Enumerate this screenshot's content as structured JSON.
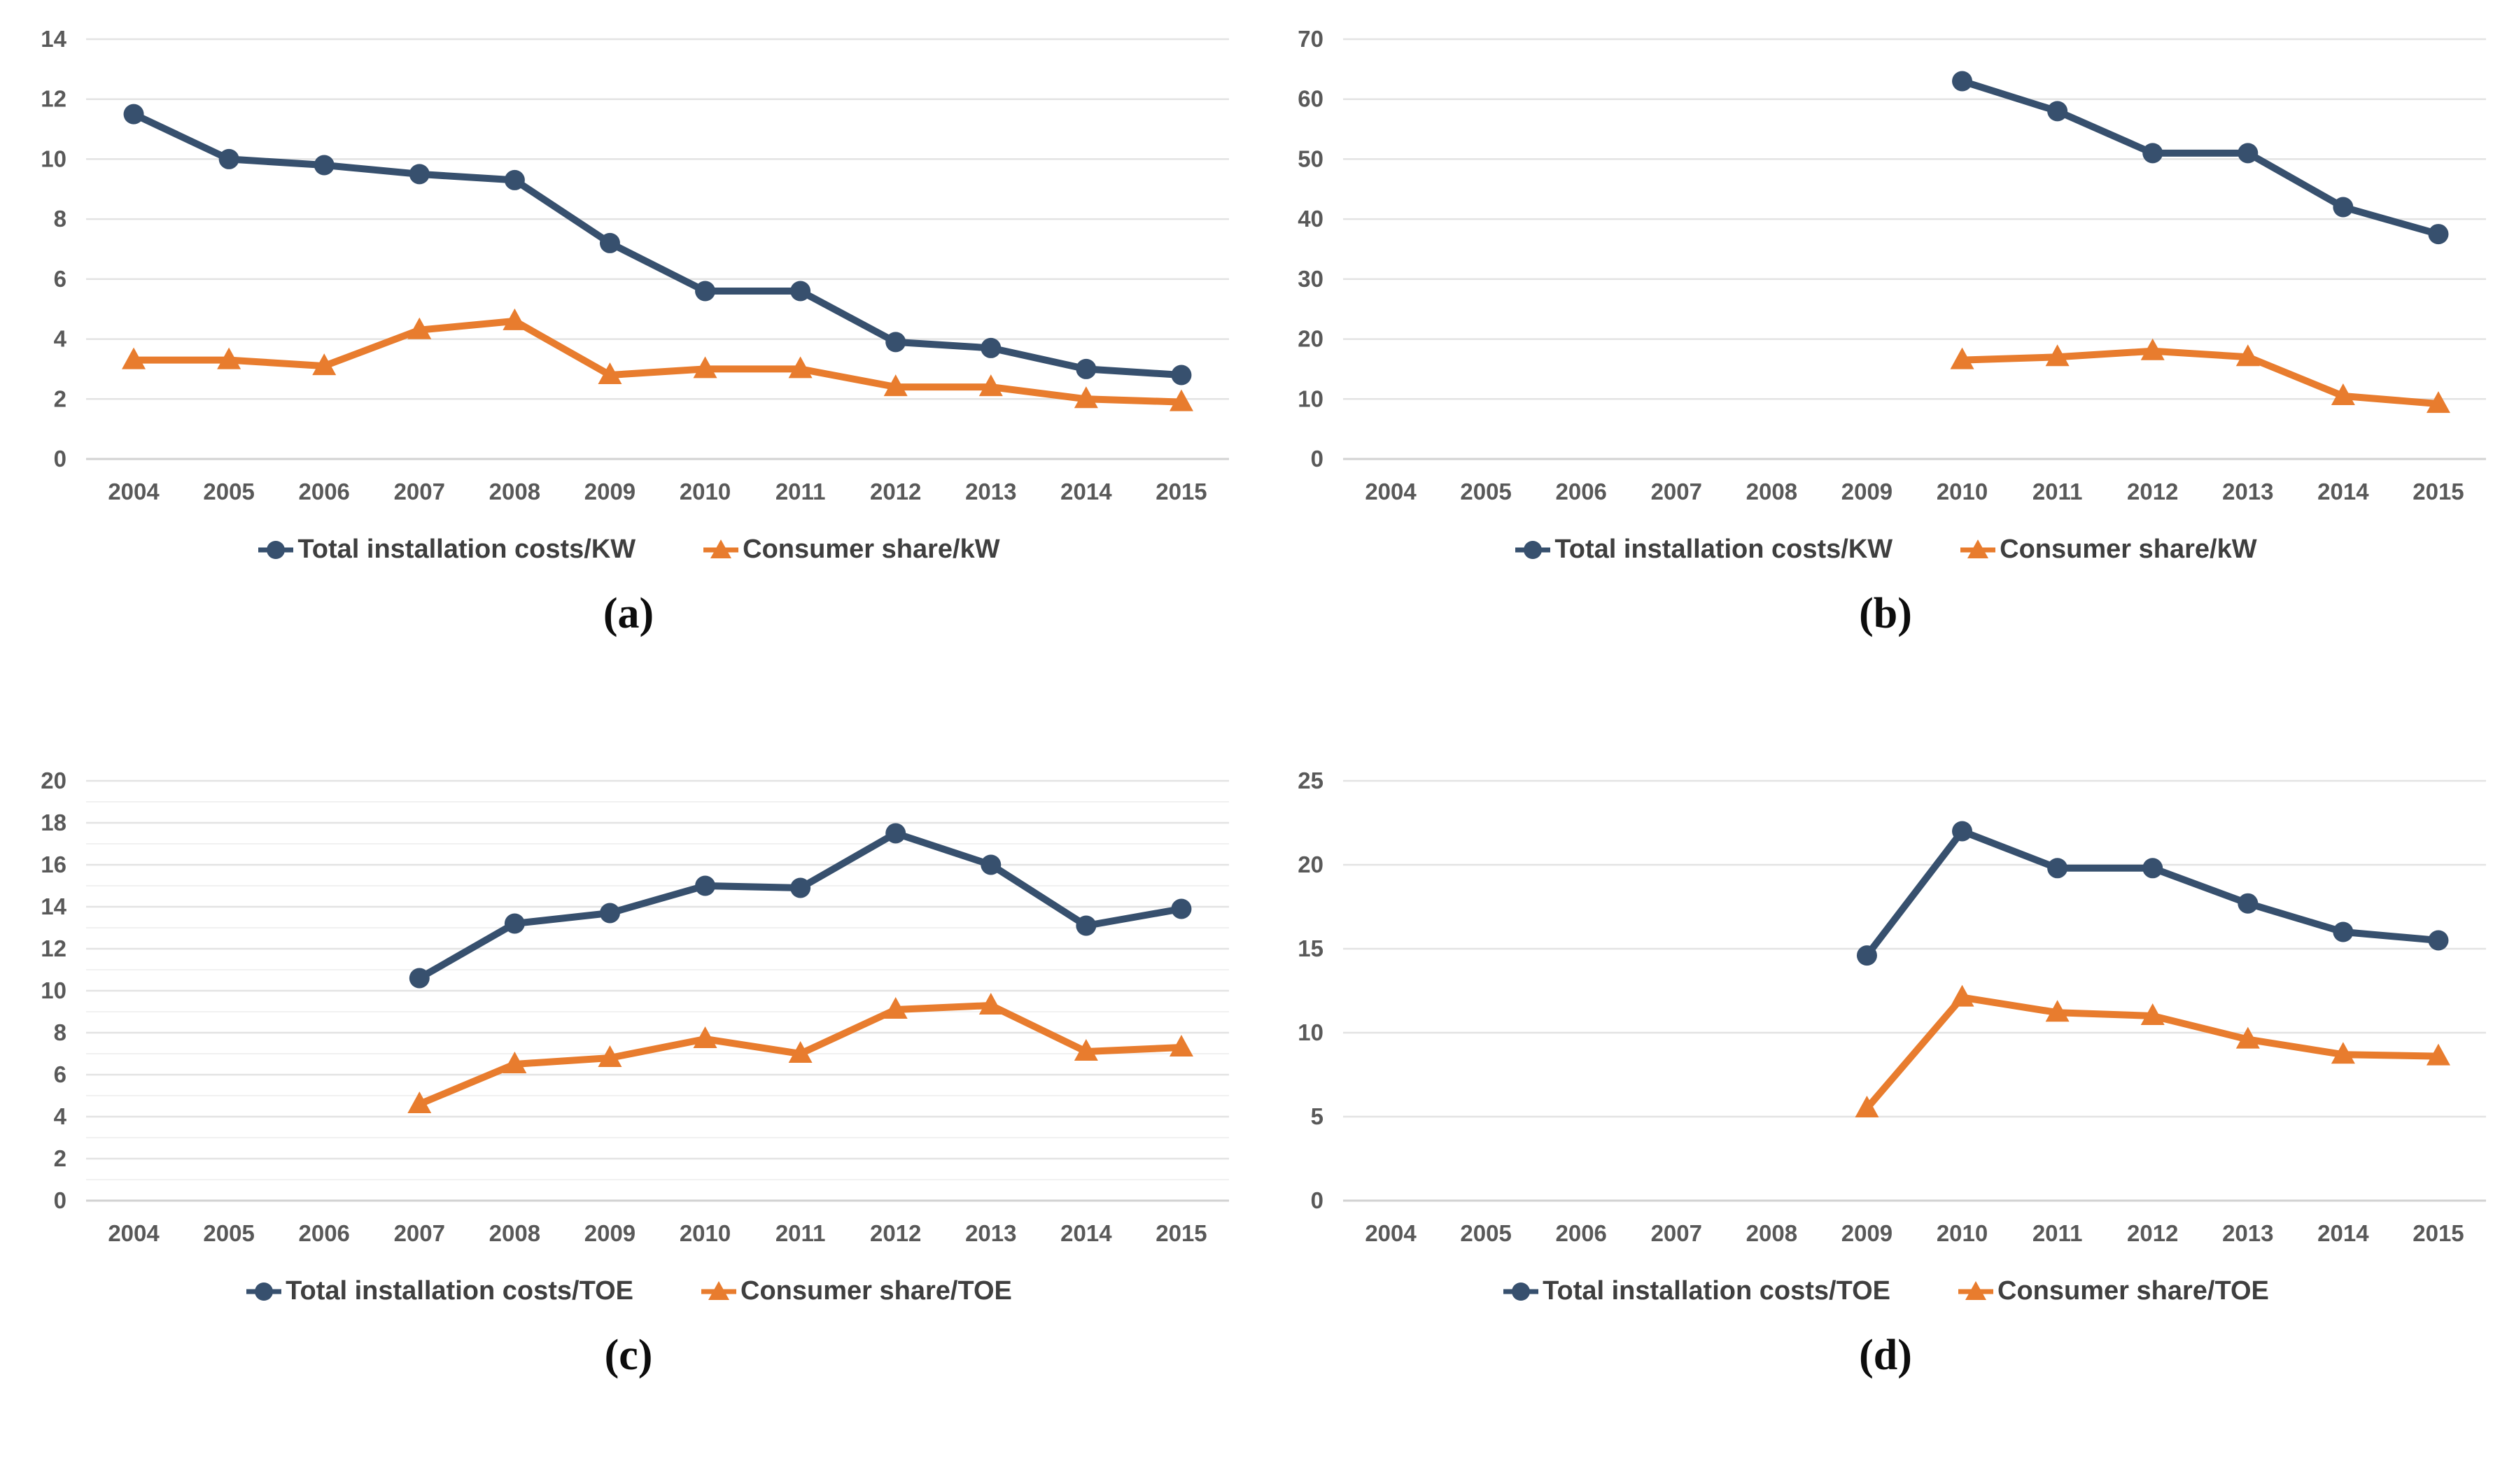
{
  "figure": {
    "colors": {
      "series_costs": "#37506e",
      "series_share": "#e87c2e",
      "gridline": "#e3e3e3",
      "tick_label": "#595959",
      "legend_label": "#3f3f3f"
    }
  },
  "chart_data": [
    {
      "type": "line",
      "panel": "a",
      "caption": "(a)",
      "categories": [
        "2004",
        "2005",
        "2006",
        "2007",
        "2008",
        "2009",
        "2010",
        "2011",
        "2012",
        "2013",
        "2014",
        "2015"
      ],
      "series": [
        {
          "name": "Total installation costs/KW",
          "marker": "circle",
          "color": "#37506e",
          "values": [
            11.5,
            10,
            9.8,
            9.5,
            9.3,
            7.2,
            5.6,
            5.6,
            3.9,
            3.7,
            3,
            2.8
          ]
        },
        {
          "name": "Consumer share/kW",
          "marker": "triangle",
          "color": "#e87c2e",
          "values": [
            3.3,
            3.3,
            3.1,
            4.3,
            4.6,
            2.8,
            3,
            3,
            2.4,
            2.4,
            2,
            1.9
          ]
        }
      ],
      "ylim": [
        0,
        14
      ],
      "ystep": 2,
      "yminor": 0,
      "grid": true,
      "legend_position": "bottom"
    },
    {
      "type": "line",
      "panel": "b",
      "caption": "(b)",
      "categories": [
        "2004",
        "2005",
        "2006",
        "2007",
        "2008",
        "2009",
        "2010",
        "2011",
        "2012",
        "2013",
        "2014",
        "2015"
      ],
      "series": [
        {
          "name": "Total installation costs/KW",
          "marker": "circle",
          "color": "#37506e",
          "values": [
            null,
            null,
            null,
            null,
            null,
            null,
            63,
            58,
            51,
            51,
            42,
            37.5
          ]
        },
        {
          "name": "Consumer share/kW",
          "marker": "triangle",
          "color": "#e87c2e",
          "values": [
            null,
            null,
            null,
            null,
            null,
            null,
            16.5,
            17,
            18,
            17,
            10.5,
            9.2
          ]
        }
      ],
      "ylim": [
        0,
        70
      ],
      "ystep": 10,
      "yminor": 0,
      "grid": true,
      "legend_position": "bottom"
    },
    {
      "type": "line",
      "panel": "c",
      "caption": "(c)",
      "categories": [
        "2004",
        "2005",
        "2006",
        "2007",
        "2008",
        "2009",
        "2010",
        "2011",
        "2012",
        "2013",
        "2014",
        "2015"
      ],
      "series": [
        {
          "name": "Total installation costs/TOE",
          "marker": "circle",
          "color": "#37506e",
          "values": [
            null,
            null,
            null,
            10.6,
            13.2,
            13.7,
            15,
            14.9,
            17.5,
            16,
            13.1,
            13.9
          ]
        },
        {
          "name": "Consumer share/TOE",
          "marker": "triangle",
          "color": "#e87c2e",
          "values": [
            null,
            null,
            null,
            4.6,
            6.5,
            6.8,
            7.7,
            7,
            9.1,
            9.3,
            7.1,
            7.3
          ]
        }
      ],
      "ylim": [
        0,
        20
      ],
      "ystep": 2,
      "yminor": 1,
      "grid": true,
      "legend_position": "bottom"
    },
    {
      "type": "line",
      "panel": "d",
      "caption": "(d)",
      "categories": [
        "2004",
        "2005",
        "2006",
        "2007",
        "2008",
        "2009",
        "2010",
        "2011",
        "2012",
        "2013",
        "2014",
        "2015"
      ],
      "series": [
        {
          "name": "Total installation costs/TOE",
          "marker": "circle",
          "color": "#37506e",
          "values": [
            null,
            null,
            null,
            null,
            null,
            14.6,
            22,
            19.8,
            19.8,
            17.7,
            16,
            15.5
          ]
        },
        {
          "name": "Consumer share/TOE",
          "marker": "triangle",
          "color": "#e87c2e",
          "values": [
            null,
            null,
            null,
            null,
            null,
            5.5,
            12.1,
            11.2,
            11,
            9.6,
            8.7,
            8.6
          ]
        }
      ],
      "ylim": [
        0,
        25
      ],
      "ystep": 5,
      "yminor": 0,
      "grid": true,
      "legend_position": "bottom"
    }
  ]
}
